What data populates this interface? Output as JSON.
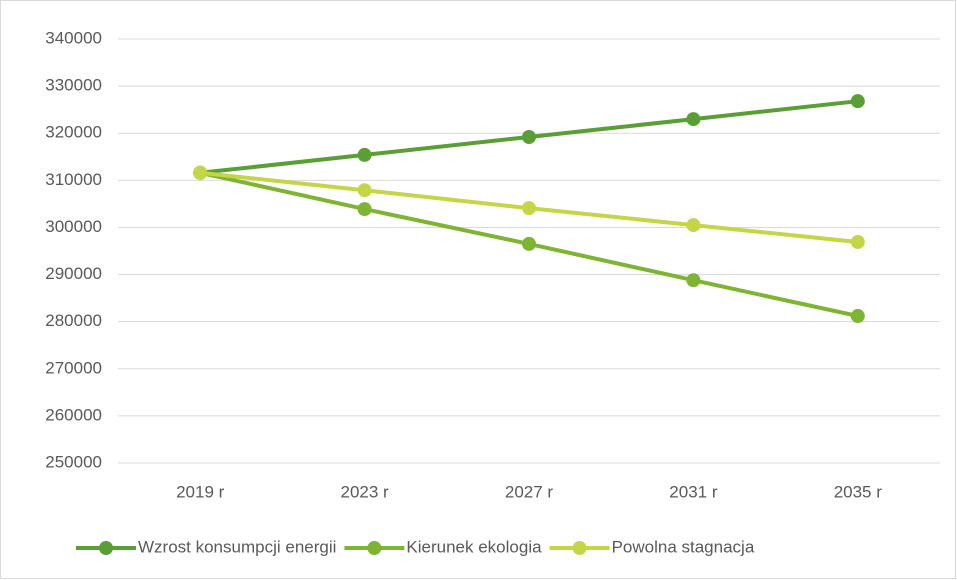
{
  "chart_data": {
    "type": "line",
    "categories": [
      "2019 r",
      "2023 r",
      "2027 r",
      "2031 r",
      "2035 r"
    ],
    "series": [
      {
        "name": "Wzrost konsumpcji energii",
        "color": "#5a9e36",
        "values": [
          311600,
          315400,
          319200,
          323000,
          326800
        ]
      },
      {
        "name": "Kierunek ekologia",
        "color": "#7db432",
        "values": [
          311600,
          303900,
          296500,
          288800,
          281200
        ]
      },
      {
        "name": "Powolna stagnacja",
        "color": "#c4d646",
        "values": [
          311600,
          307900,
          304100,
          300500,
          296900
        ]
      }
    ],
    "ylim": [
      250000,
      340000
    ],
    "yticks": [
      250000,
      260000,
      270000,
      280000,
      290000,
      300000,
      310000,
      320000,
      330000,
      340000
    ],
    "grid": true,
    "legend": "bottom"
  }
}
